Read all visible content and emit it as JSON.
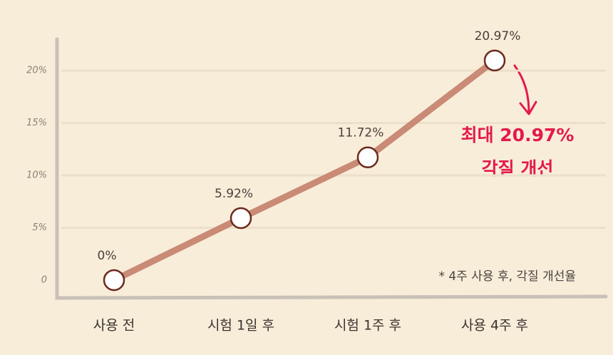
{
  "chart_data": {
    "type": "line",
    "categories": [
      "사용 전",
      "시험 1일 후",
      "시험 1주 후",
      "사용 4주 후"
    ],
    "values": [
      0,
      5.92,
      11.72,
      20.97
    ],
    "value_labels": [
      "0%",
      "5.92%",
      "11.72%",
      "20.97%"
    ],
    "color": "#c98a76",
    "highlight_color": "#e4194b",
    "highlight_index": 3,
    "ylim": [
      -1.5,
      23
    ],
    "yticks": [
      {
        "value": 0,
        "label": "0"
      },
      {
        "value": 5,
        "label": "5%"
      },
      {
        "value": 10,
        "label": "10%"
      },
      {
        "value": 15,
        "label": "15%"
      },
      {
        "value": 20,
        "label": "20%"
      }
    ],
    "grid": true,
    "annotation": [
      "최대 20.97%",
      "각질 개선"
    ],
    "note": "* 4주 사용 후, 각질 개선율"
  }
}
